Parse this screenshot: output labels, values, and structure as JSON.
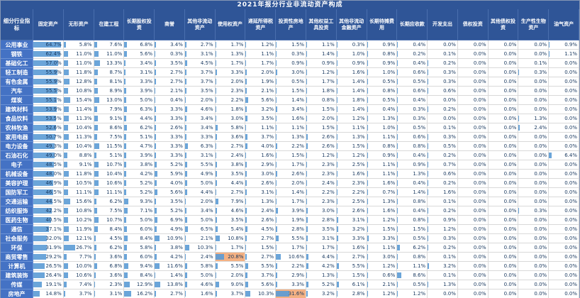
{
  "title": "2021年报分行业非流动资产构成",
  "chart_data": {
    "type": "table",
    "title": "2021年报分行业非流动资产构成",
    "corner_header": "细分行业指标",
    "unit": "%",
    "columns": [
      "固定资产",
      "无形资产",
      "在建工程",
      "长期股权投资",
      "商誉",
      "其他非流动资产",
      "使用权资产",
      "递延所得税资产",
      "投资性房地产",
      "其他权益工具投资",
      "其他非流动金融资产",
      "长期待摊费用",
      "长期应收款",
      "开发支出",
      "债权投资",
      "其他债权投资",
      "生产性生物资产",
      "油气资产"
    ],
    "rows": [
      {
        "industry": "公用事业",
        "values": [
          64.7,
          5.8,
          7.6,
          6.8,
          3.4,
          2.7,
          1.7,
          1.2,
          1.5,
          1.1,
          0.3,
          0.9,
          0.4,
          0.0,
          0.0,
          0.0,
          0.0,
          0.9
        ]
      },
      {
        "industry": "钢铁",
        "values": [
          62.4,
          11.0,
          11.0,
          5.6,
          0.3,
          3.1,
          1.3,
          1.1,
          0.3,
          1.4,
          1.0,
          0.8,
          0.2,
          0.1,
          0.0,
          0.0,
          0.0,
          1.1
        ]
      },
      {
        "industry": "基础化工",
        "values": [
          57.0,
          11.0,
          13.3,
          3.4,
          3.5,
          4.5,
          1.7,
          1.7,
          0.9,
          0.9,
          0.9,
          0.9,
          0.4,
          0.2,
          0.0,
          0.0,
          0.1,
          0.0
        ]
      },
      {
        "industry": "轻工制造",
        "values": [
          55.9,
          11.8,
          8.7,
          3.1,
          2.7,
          3.7,
          3.3,
          2.0,
          3.0,
          1.2,
          1.6,
          1.0,
          0.6,
          0.3,
          0.0,
          0.0,
          0.3,
          0.0
        ]
      },
      {
        "industry": "有色金属",
        "values": [
          55.9,
          12.8,
          8.1,
          3.3,
          2.7,
          3.7,
          2.0,
          1.9,
          0.5,
          1.7,
          1.4,
          0.5,
          0.5,
          0.3,
          0.0,
          0.0,
          0.0,
          0.0
        ]
      },
      {
        "industry": "汽车",
        "values": [
          55.5,
          10.8,
          8.9,
          3.9,
          2.1,
          3.5,
          2.3,
          2.1,
          1.5,
          1.8,
          1.4,
          0.8,
          0.6,
          0.6,
          0.0,
          0.0,
          0.0,
          0.0
        ]
      },
      {
        "industry": "煤炭",
        "values": [
          55.1,
          15.4,
          13.0,
          5.0,
          0.4,
          2.0,
          2.2,
          5.6,
          1.4,
          0.8,
          1.8,
          0.5,
          0.4,
          0.0,
          0.0,
          0.0,
          0.0,
          0.0
        ]
      },
      {
        "industry": "建筑材料",
        "values": [
          53.9,
          11.4,
          7.9,
          6.3,
          3.3,
          4.6,
          1.8,
          3.2,
          3.4,
          1.5,
          1.4,
          0.4,
          0.3,
          0.2,
          0.0,
          0.0,
          0.0,
          0.0
        ]
      },
      {
        "industry": "食品饮料",
        "values": [
          53.5,
          11.3,
          9.1,
          4.4,
          3.3,
          3.4,
          3.0,
          3.5,
          1.6,
          2.0,
          1.2,
          1.3,
          0.3,
          0.0,
          0.0,
          0.0,
          1.3,
          0.0
        ]
      },
      {
        "industry": "农林牧渔",
        "values": [
          52.6,
          10.4,
          8.6,
          6.2,
          2.6,
          3.4,
          5.8,
          1.1,
          1.1,
          1.5,
          1.1,
          1.0,
          0.5,
          0.1,
          0.0,
          0.0,
          2.4,
          0.0
        ]
      },
      {
        "industry": "家用电器",
        "values": [
          50.7,
          11.3,
          7.5,
          5.1,
          3.3,
          3.3,
          3.6,
          3.7,
          1.3,
          2.6,
          1.3,
          1.1,
          0.6,
          0.3,
          0.0,
          0.0,
          0.0,
          0.0
        ]
      },
      {
        "industry": "电力设备",
        "values": [
          49.3,
          10.4,
          11.5,
          4.7,
          3.3,
          6.3,
          2.7,
          4.0,
          2.2,
          2.6,
          1.5,
          0.8,
          0.8,
          0.5,
          0.0,
          0.0,
          0.0,
          0.0
        ]
      },
      {
        "industry": "石油石化",
        "values": [
          49.0,
          8.8,
          5.1,
          3.9,
          3.3,
          3.1,
          2.4,
          1.6,
          1.5,
          1.2,
          1.2,
          0.9,
          0.4,
          0.2,
          0.0,
          0.0,
          0.0,
          6.4
        ]
      },
      {
        "industry": "电子",
        "values": [
          48.5,
          9.1,
          10.7,
          3.8,
          5.2,
          5.5,
          3.8,
          2.9,
          1.7,
          2.3,
          2.5,
          1.1,
          0.9,
          0.7,
          0.0,
          0.0,
          0.0,
          0.0
        ]
      },
      {
        "industry": "机械设备",
        "values": [
          48.0,
          11.8,
          10.4,
          4.2,
          5.9,
          4.9,
          3.5,
          3.0,
          2.6,
          2.3,
          1.6,
          1.1,
          1.3,
          0.6,
          0.0,
          0.0,
          0.0,
          0.0
        ]
      },
      {
        "industry": "美容护理",
        "values": [
          46.9,
          10.5,
          10.6,
          5.2,
          4.0,
          5.0,
          4.4,
          2.6,
          2.0,
          2.4,
          2.3,
          1.6,
          0.4,
          0.2,
          0.0,
          0.0,
          0.0,
          0.0
        ]
      },
      {
        "industry": "国防军工",
        "values": [
          46.5,
          11.1,
          11.1,
          5.2,
          5.6,
          4.4,
          2.7,
          3.1,
          1.4,
          2.2,
          2.2,
          0.7,
          1.4,
          1.6,
          0.0,
          0.0,
          0.0,
          0.0
        ]
      },
      {
        "industry": "交通运输",
        "values": [
          44.5,
          15.6,
          6.2,
          9.3,
          3.5,
          2.0,
          7.9,
          1.3,
          1.7,
          2.3,
          2.5,
          1.3,
          0.8,
          0.1,
          0.0,
          0.0,
          0.0,
          0.0
        ]
      },
      {
        "industry": "纺织服饰",
        "values": [
          42.2,
          10.8,
          7.5,
          7.1,
          5.2,
          3.4,
          4.6,
          2.4,
          3.9,
          3.0,
          2.6,
          1.6,
          0.4,
          0.2,
          0.0,
          0.0,
          0.3,
          0.0
        ]
      },
      {
        "industry": "医药生物",
        "values": [
          40.5,
          10.2,
          10.7,
          5.0,
          6.9,
          5.0,
          3.5,
          2.6,
          1.9,
          2.8,
          3.1,
          1.2,
          0.8,
          0.9,
          0.0,
          0.0,
          0.0,
          0.0
        ]
      },
      {
        "industry": "通信",
        "values": [
          37.1,
          11.9,
          8.4,
          6.0,
          4.9,
          6.5,
          5.4,
          4.5,
          2.8,
          3.5,
          3.2,
          1.5,
          1.5,
          1.2,
          0.0,
          0.0,
          0.0,
          0.0
        ]
      },
      {
        "industry": "社会服务",
        "values": [
          32.0,
          12.1,
          4.5,
          8.4,
          10.9,
          2.1,
          10.8,
          2.7,
          5.5,
          3.1,
          3.3,
          3.3,
          0.5,
          0.3,
          0.0,
          0.0,
          0.0,
          0.0
        ]
      },
      {
        "industry": "环保",
        "values": [
          31.9,
          26.7,
          6.2,
          5.8,
          3.8,
          10.3,
          1.7,
          1.5,
          1.7,
          1.7,
          1.6,
          1.1,
          6.2,
          0.2,
          0.0,
          0.0,
          0.0,
          0.0
        ]
      },
      {
        "industry": "商贸零售",
        "values": [
          29.2,
          7.7,
          3.6,
          6.0,
          4.2,
          2.4,
          20.8,
          2.7,
          10.6,
          4.4,
          2.7,
          3.0,
          0.8,
          0.1,
          0.0,
          0.0,
          0.0,
          0.0
        ]
      },
      {
        "industry": "计算机",
        "values": [
          26.5,
          10.0,
          6.8,
          9.4,
          11.6,
          5.8,
          5.5,
          5.5,
          2.2,
          4.2,
          5.5,
          1.2,
          1.1,
          3.2,
          0.0,
          0.0,
          0.0,
          0.0
        ]
      },
      {
        "industry": "建筑装饰",
        "values": [
          26.4,
          10.6,
          3.6,
          8.4,
          1.4,
          5.0,
          2.0,
          3.7,
          2.9,
          1.3,
          1.5,
          0.6,
          8.6,
          0.1,
          0.0,
          0.0,
          0.0,
          0.0
        ]
      },
      {
        "industry": "传媒",
        "values": [
          19.1,
          7.4,
          2.3,
          12.9,
          13.8,
          4.6,
          9.0,
          5.6,
          3.3,
          5.2,
          6.1,
          2.1,
          0.5,
          1.3,
          0.0,
          0.0,
          0.0,
          0.0
        ]
      },
      {
        "industry": "房地产",
        "values": [
          14.8,
          3.7,
          3.1,
          16.2,
          2.7,
          1.6,
          3.7,
          10.3,
          31.6,
          3.2,
          2.8,
          1.2,
          1.2,
          0.0,
          0.0,
          0.0,
          0.0,
          0.0
        ]
      }
    ],
    "highlighted_cells": [
      {
        "industry": "商贸零售",
        "column": "使用权资产",
        "value": 20.8
      },
      {
        "industry": "房地产",
        "column": "投资性房地产",
        "value": 31.6
      }
    ],
    "layout": {
      "value_bars": true,
      "bar_color": "#5B9BD5",
      "highlight_color": "#F4B183",
      "header_color": "#2F5597",
      "row_header_color": "#4472C4",
      "value_format": "percent_1dp"
    }
  }
}
